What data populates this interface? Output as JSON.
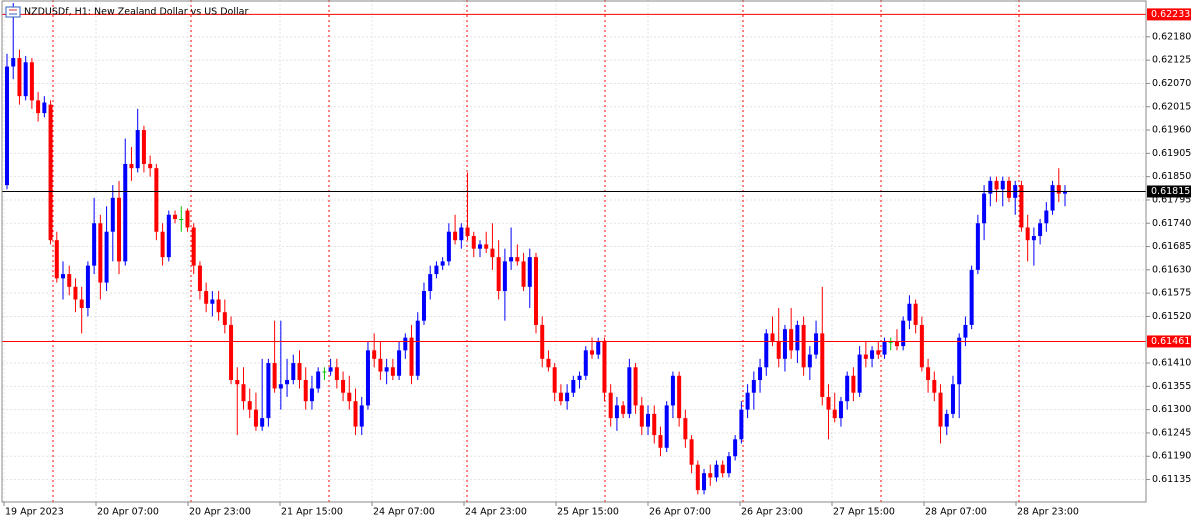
{
  "chart_data": {
    "type": "candlestick",
    "title": "NZDUSDf, H1:  New Zealand Dollar vs US Dollar",
    "up_color": "#0000ff",
    "down_color": "#ff0000",
    "doji_color": "#00c000",
    "ylim": [
      0.61082,
      0.62267
    ],
    "yticks": [
      0.61135,
      {
        "value": 0.6119,
        "label": "0.61190"
      },
      0.61245,
      {
        "value": 0.613,
        "label": "0.61300"
      },
      0.61355,
      {
        "value": 0.6141,
        "label": "0.61410"
      },
      {
        "value": 0.6152,
        "label": "0.61520"
      },
      0.61575,
      {
        "value": 0.6163,
        "label": "0.61630"
      },
      0.61685,
      {
        "value": 0.6174,
        "label": "0.61740"
      },
      0.61795,
      {
        "value": 0.6185,
        "label": "0.61850"
      },
      0.61905,
      {
        "value": 0.6196,
        "label": "0.61960"
      },
      0.62015,
      {
        "value": 0.6207,
        "label": "0.62070"
      },
      0.62125,
      {
        "value": 0.6218,
        "label": "0.62180"
      }
    ],
    "grid": true,
    "levels": [
      {
        "value": 0.62233,
        "color": "#ff0000"
      },
      {
        "value": 0.61815,
        "color": "#000000"
      },
      {
        "value": 0.61461,
        "color": "#ff0000"
      }
    ],
    "x_labels": [
      "19 Apr 2023",
      "20 Apr 07:00",
      "20 Apr 23:00",
      "21 Apr 15:00",
      "24 Apr 07:00",
      "24 Apr 23:00",
      "25 Apr 15:00",
      "26 Apr 07:00",
      "26 Apr 23:00",
      "27 Apr 15:00",
      "28 Apr 07:00",
      "28 Apr 23:00"
    ],
    "ohlc": [
      [
        0.6183,
        0.6214,
        0.6182,
        0.6211
      ],
      [
        0.6211,
        0.6226,
        0.6208,
        0.6213
      ],
      [
        0.6213,
        0.6215,
        0.6202,
        0.6204
      ],
      [
        0.6204,
        0.62135,
        0.6203,
        0.6212
      ],
      [
        0.6212,
        0.6213,
        0.6201,
        0.6203
      ],
      [
        0.6203,
        0.6205,
        0.6198,
        0.62
      ],
      [
        0.62,
        0.6204,
        0.6199,
        0.62025
      ],
      [
        0.6202,
        0.6203,
        0.6169,
        0.617
      ],
      [
        0.617,
        0.6172,
        0.616,
        0.6161
      ],
      [
        0.6161,
        0.6165,
        0.6156,
        0.6162
      ],
      [
        0.6162,
        0.6164,
        0.6157,
        0.6159
      ],
      [
        0.6159,
        0.6161,
        0.6153,
        0.6156
      ],
      [
        0.6156,
        0.6159,
        0.6148,
        0.6154
      ],
      [
        0.6154,
        0.6165,
        0.6152,
        0.6164
      ],
      [
        0.6164,
        0.618,
        0.6162,
        0.6174
      ],
      [
        0.6174,
        0.6176,
        0.6156,
        0.616
      ],
      [
        0.616,
        0.6178,
        0.6158,
        0.6172
      ],
      [
        0.6172,
        0.6183,
        0.6165,
        0.618
      ],
      [
        0.618,
        0.6184,
        0.6162,
        0.6165
      ],
      [
        0.6165,
        0.6194,
        0.6164,
        0.6188
      ],
      [
        0.6188,
        0.6192,
        0.6184,
        0.6187
      ],
      [
        0.6187,
        0.6201,
        0.6186,
        0.6196
      ],
      [
        0.6196,
        0.6197,
        0.6186,
        0.6188
      ],
      [
        0.6188,
        0.619,
        0.6185,
        0.6187
      ],
      [
        0.6187,
        0.6188,
        0.617,
        0.6172
      ],
      [
        0.6172,
        0.6174,
        0.6164,
        0.6166
      ],
      [
        0.6166,
        0.6177,
        0.6165,
        0.6176
      ],
      [
        0.6176,
        0.6177,
        0.6174,
        0.6175
      ],
      [
        0.6175,
        0.6178,
        0.6172,
        0.6175
      ],
      [
        0.6177,
        0.61775,
        0.6172,
        0.6173
      ],
      [
        0.6173,
        0.6174,
        0.6162,
        0.6164
      ],
      [
        0.6164,
        0.6165,
        0.6156,
        0.6158
      ],
      [
        0.6158,
        0.616,
        0.6153,
        0.6155
      ],
      [
        0.6155,
        0.6158,
        0.6152,
        0.6156
      ],
      [
        0.6156,
        0.6158,
        0.6151,
        0.6153
      ],
      [
        0.6153,
        0.6156,
        0.6148,
        0.615
      ],
      [
        0.615,
        0.6152,
        0.6136,
        0.6137
      ],
      [
        0.6137,
        0.614,
        0.6124,
        0.6136
      ],
      [
        0.6136,
        0.614,
        0.613,
        0.6132
      ],
      [
        0.6132,
        0.6135,
        0.6128,
        0.613
      ],
      [
        0.613,
        0.6134,
        0.6125,
        0.6126
      ],
      [
        0.6126,
        0.6142,
        0.6125,
        0.6128
      ],
      [
        0.6128,
        0.6142,
        0.6126,
        0.6141
      ],
      [
        0.6141,
        0.6151,
        0.6134,
        0.6135
      ],
      [
        0.6135,
        0.6151,
        0.613,
        0.6136
      ],
      [
        0.6136,
        0.6142,
        0.6133,
        0.6137
      ],
      [
        0.6137,
        0.6143,
        0.6136,
        0.6141
      ],
      [
        0.6141,
        0.6144,
        0.6135,
        0.6137
      ],
      [
        0.6137,
        0.614,
        0.613,
        0.6132
      ],
      [
        0.6132,
        0.6138,
        0.613,
        0.6135
      ],
      [
        0.6135,
        0.614,
        0.6134,
        0.6139
      ],
      [
        0.6139,
        0.614,
        0.6137,
        0.6139
      ],
      [
        0.6139,
        0.6142,
        0.6138,
        0.614
      ],
      [
        0.614,
        0.6142,
        0.6135,
        0.6137
      ],
      [
        0.6137,
        0.6139,
        0.6132,
        0.6134
      ],
      [
        0.6134,
        0.6138,
        0.613,
        0.6132
      ],
      [
        0.6132,
        0.6135,
        0.6124,
        0.6126
      ],
      [
        0.6126,
        0.6133,
        0.6124,
        0.6131
      ],
      [
        0.6131,
        0.6146,
        0.613,
        0.6144
      ],
      [
        0.6144,
        0.6148,
        0.614,
        0.6142
      ],
      [
        0.6142,
        0.6146,
        0.6137,
        0.6139
      ],
      [
        0.6139,
        0.6142,
        0.6136,
        0.614
      ],
      [
        0.614,
        0.6142,
        0.6137,
        0.6138
      ],
      [
        0.6138,
        0.6146,
        0.6137,
        0.6144
      ],
      [
        0.6144,
        0.6148,
        0.6142,
        0.6147
      ],
      [
        0.6147,
        0.615,
        0.6136,
        0.6138
      ],
      [
        0.6138,
        0.6153,
        0.6137,
        0.6151
      ],
      [
        0.6151,
        0.616,
        0.615,
        0.6158
      ],
      [
        0.6158,
        0.6164,
        0.6156,
        0.6162
      ],
      [
        0.6162,
        0.6165,
        0.6161,
        0.6164
      ],
      [
        0.6164,
        0.6166,
        0.6163,
        0.6165
      ],
      [
        0.6165,
        0.6174,
        0.6164,
        0.6172
      ],
      [
        0.6172,
        0.6176,
        0.6169,
        0.617
      ],
      [
        0.617,
        0.6174,
        0.6168,
        0.6173
      ],
      [
        0.6173,
        0.6186,
        0.617,
        0.6171
      ],
      [
        0.6171,
        0.6172,
        0.6166,
        0.6168
      ],
      [
        0.6168,
        0.617,
        0.6166,
        0.6169
      ],
      [
        0.6169,
        0.6172,
        0.6167,
        0.6168
      ],
      [
        0.6168,
        0.6174,
        0.6163,
        0.6166
      ],
      [
        0.6166,
        0.617,
        0.6156,
        0.6158
      ],
      [
        0.6158,
        0.6168,
        0.6151,
        0.6165
      ],
      [
        0.6165,
        0.6173,
        0.6163,
        0.6166
      ],
      [
        0.6166,
        0.6169,
        0.6164,
        0.6165
      ],
      [
        0.6165,
        0.6167,
        0.6158,
        0.6159
      ],
      [
        0.6159,
        0.6168,
        0.6154,
        0.6166
      ],
      [
        0.6166,
        0.6167,
        0.6148,
        0.615
      ],
      [
        0.615,
        0.6152,
        0.614,
        0.6142
      ],
      [
        0.6142,
        0.6144,
        0.6139,
        0.614
      ],
      [
        0.614,
        0.6141,
        0.6132,
        0.6134
      ],
      [
        0.6134,
        0.6136,
        0.6131,
        0.6132
      ],
      [
        0.6132,
        0.6136,
        0.613,
        0.6134
      ],
      [
        0.6134,
        0.6138,
        0.6133,
        0.6137
      ],
      [
        0.6137,
        0.6139,
        0.6135,
        0.6138
      ],
      [
        0.6138,
        0.6145,
        0.6137,
        0.6144
      ],
      [
        0.6144,
        0.6147,
        0.6142,
        0.6143
      ],
      [
        0.6143,
        0.6147,
        0.6142,
        0.6146
      ],
      [
        0.6146,
        0.6147,
        0.6132,
        0.6134
      ],
      [
        0.6134,
        0.6136,
        0.6126,
        0.6128
      ],
      [
        0.6128,
        0.6133,
        0.6125,
        0.6131
      ],
      [
        0.6131,
        0.6132,
        0.6128,
        0.6129
      ],
      [
        0.6129,
        0.6142,
        0.6128,
        0.614
      ],
      [
        0.614,
        0.6141,
        0.6129,
        0.6131
      ],
      [
        0.6131,
        0.6133,
        0.6124,
        0.6126
      ],
      [
        0.6126,
        0.6131,
        0.6124,
        0.6129
      ],
      [
        0.6129,
        0.6131,
        0.6122,
        0.6124
      ],
      [
        0.6124,
        0.6126,
        0.6119,
        0.6121
      ],
      [
        0.6121,
        0.6132,
        0.612,
        0.6131
      ],
      [
        0.6131,
        0.6139,
        0.6128,
        0.6138
      ],
      [
        0.6138,
        0.6139,
        0.6126,
        0.6128
      ],
      [
        0.6128,
        0.613,
        0.6121,
        0.6123
      ],
      [
        0.6123,
        0.6124,
        0.6115,
        0.6117
      ],
      [
        0.6117,
        0.6118,
        0.611,
        0.6111
      ],
      [
        0.6111,
        0.6116,
        0.611,
        0.6115
      ],
      [
        0.6115,
        0.6117,
        0.6112,
        0.6114
      ],
      [
        0.6114,
        0.6118,
        0.6113,
        0.6117
      ],
      [
        0.6117,
        0.6118,
        0.6114,
        0.6115
      ],
      [
        0.6115,
        0.612,
        0.6114,
        0.6119
      ],
      [
        0.6119,
        0.6124,
        0.6118,
        0.6123
      ],
      [
        0.6123,
        0.6132,
        0.6122,
        0.613
      ],
      [
        0.613,
        0.6136,
        0.6128,
        0.6134
      ],
      [
        0.6134,
        0.6139,
        0.613,
        0.6137
      ],
      [
        0.6137,
        0.6142,
        0.6134,
        0.614
      ],
      [
        0.614,
        0.6149,
        0.6138,
        0.6148
      ],
      [
        0.6148,
        0.6152,
        0.6145,
        0.6146
      ],
      [
        0.6146,
        0.6154,
        0.614,
        0.6142
      ],
      [
        0.6142,
        0.615,
        0.6139,
        0.6149
      ],
      [
        0.6149,
        0.6154,
        0.6142,
        0.6144
      ],
      [
        0.6144,
        0.6151,
        0.6141,
        0.615
      ],
      [
        0.615,
        0.6152,
        0.6138,
        0.614
      ],
      [
        0.614,
        0.6145,
        0.6137,
        0.6143
      ],
      [
        0.6143,
        0.6151,
        0.6142,
        0.6148
      ],
      [
        0.6148,
        0.6159,
        0.6131,
        0.6133
      ],
      [
        0.6133,
        0.6136,
        0.6123,
        0.613
      ],
      [
        0.613,
        0.6134,
        0.6127,
        0.6128
      ],
      [
        0.6128,
        0.6133,
        0.6126,
        0.6132
      ],
      [
        0.6132,
        0.6139,
        0.613,
        0.6138
      ],
      [
        0.6138,
        0.614,
        0.6132,
        0.6134
      ],
      [
        0.6134,
        0.6145,
        0.6133,
        0.6143
      ],
      [
        0.6143,
        0.6146,
        0.614,
        0.6142
      ],
      [
        0.6142,
        0.6145,
        0.614,
        0.6144
      ],
      [
        0.6144,
        0.6146,
        0.6142,
        0.6143
      ],
      [
        0.6143,
        0.6147,
        0.6142,
        0.6146
      ],
      [
        0.6146,
        0.6147,
        0.6144,
        0.6146
      ],
      [
        0.6146,
        0.6149,
        0.6144,
        0.6145
      ],
      [
        0.6145,
        0.6152,
        0.6144,
        0.6151
      ],
      [
        0.6151,
        0.6157,
        0.6149,
        0.6155
      ],
      [
        0.6155,
        0.6156,
        0.6148,
        0.615
      ],
      [
        0.615,
        0.6152,
        0.6139,
        0.614
      ],
      [
        0.614,
        0.6142,
        0.6134,
        0.6137
      ],
      [
        0.6137,
        0.6139,
        0.6132,
        0.6134
      ],
      [
        0.6134,
        0.6136,
        0.6122,
        0.6126
      ],
      [
        0.6126,
        0.613,
        0.6124,
        0.6129
      ],
      [
        0.6129,
        0.6138,
        0.6128,
        0.6136
      ],
      [
        0.6136,
        0.6148,
        0.6128,
        0.6147
      ],
      [
        0.6147,
        0.6152,
        0.6145,
        0.615
      ],
      [
        0.615,
        0.6164,
        0.6149,
        0.6163
      ],
      [
        0.6163,
        0.6176,
        0.6162,
        0.6174
      ],
      [
        0.6174,
        0.6183,
        0.617,
        0.6181
      ],
      [
        0.6181,
        0.6185,
        0.6178,
        0.6184
      ],
      [
        0.6184,
        0.6185,
        0.6179,
        0.6182
      ],
      [
        0.6182,
        0.6185,
        0.6178,
        0.6184
      ],
      [
        0.6184,
        0.6185,
        0.6179,
        0.618
      ],
      [
        0.618,
        0.6184,
        0.6176,
        0.6183
      ],
      [
        0.6183,
        0.6184,
        0.6172,
        0.6173
      ],
      [
        0.6173,
        0.6176,
        0.6165,
        0.617
      ],
      [
        0.617,
        0.6173,
        0.6164,
        0.6171
      ],
      [
        0.6171,
        0.6175,
        0.6169,
        0.6174
      ],
      [
        0.6174,
        0.6179,
        0.6172,
        0.6177
      ],
      [
        0.6177,
        0.6184,
        0.6176,
        0.6183
      ],
      [
        0.6183,
        0.6187,
        0.6179,
        0.6181
      ],
      [
        0.6181,
        0.6183,
        0.6178,
        0.61815
      ]
    ]
  }
}
